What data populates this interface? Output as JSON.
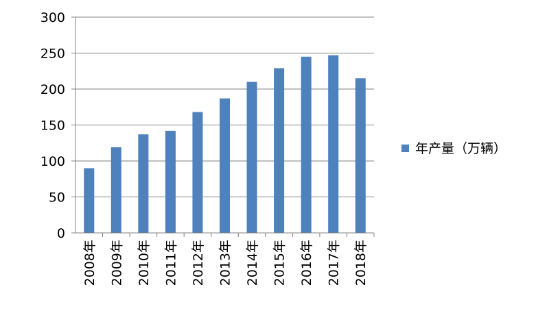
{
  "chart_data": {
    "type": "bar",
    "categories": [
      "2008年",
      "2009年",
      "2010年",
      "2011年",
      "2012年",
      "2013年",
      "2014年",
      "2015年",
      "2016年",
      "2017年",
      "2018年"
    ],
    "series": [
      {
        "name": "年产量（万辆）",
        "color": "#4F81BD",
        "values": [
          90,
          119,
          137,
          142,
          168,
          187,
          210,
          229,
          245,
          247,
          215
        ]
      }
    ],
    "yticks": [
      0,
      50,
      100,
      150,
      200,
      250,
      300
    ],
    "ylim": [
      0,
      300
    ],
    "title": "",
    "xlabel": "",
    "ylabel": "",
    "grid": true,
    "legend_position": "right"
  }
}
